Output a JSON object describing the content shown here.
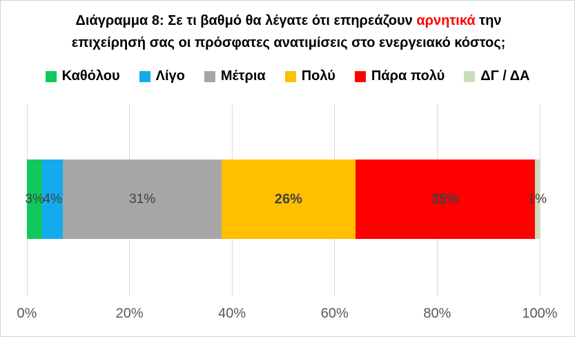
{
  "title": {
    "prefix": "Διάγραμμα 8: Σε τι βαθμό θα λέγατε ότι επηρεάζουν ",
    "highlight": "αρνητικά",
    "suffix": " την επιχείρησή σας οι πρόσφατες ανατιμίσεις στο ενεργειακό κόστος;",
    "highlight_color": "#FF0000",
    "text_color": "#000000"
  },
  "chart_data": {
    "type": "bar",
    "variant": "horizontal-stacked",
    "title": "Διάγραμμα 8: Σε τι βαθμό θα λέγατε ότι επηρεάζουν αρνητικά την επιχείρησή σας οι πρόσφατες ανατιμίσεις στο ενεργειακό κόστος;",
    "categories": [
      "Καθόλου",
      "Λίγο",
      "Μέτρια",
      "Πολύ",
      "Πάρα πολύ",
      "ΔΓ / ΔΑ"
    ],
    "values": [
      3,
      4,
      31,
      26,
      35,
      1
    ],
    "data_labels": [
      "3%",
      "4%",
      "31%",
      "26%",
      "35%",
      "1%"
    ],
    "bold_data_labels": [
      false,
      false,
      false,
      true,
      true,
      false
    ],
    "colors": [
      "#0FC95C",
      "#12ACEC",
      "#A6A6A6",
      "#FFC000",
      "#FF0000",
      "#CBDEBC"
    ],
    "xlim": [
      0,
      100
    ],
    "x_ticks": [
      {
        "value": 0,
        "label": "0%"
      },
      {
        "value": 20,
        "label": "20%"
      },
      {
        "value": 40,
        "label": "40%"
      },
      {
        "value": 60,
        "label": "60%"
      },
      {
        "value": 80,
        "label": "80%"
      },
      {
        "value": 100,
        "label": "100%"
      }
    ],
    "grid": true,
    "legend_position": "top"
  },
  "styles": {
    "data_label_color": "#404040",
    "axis_label_color": "#595959",
    "gridline_color": "#D9D9D9",
    "frame_border_color": "#D2D2D2"
  }
}
